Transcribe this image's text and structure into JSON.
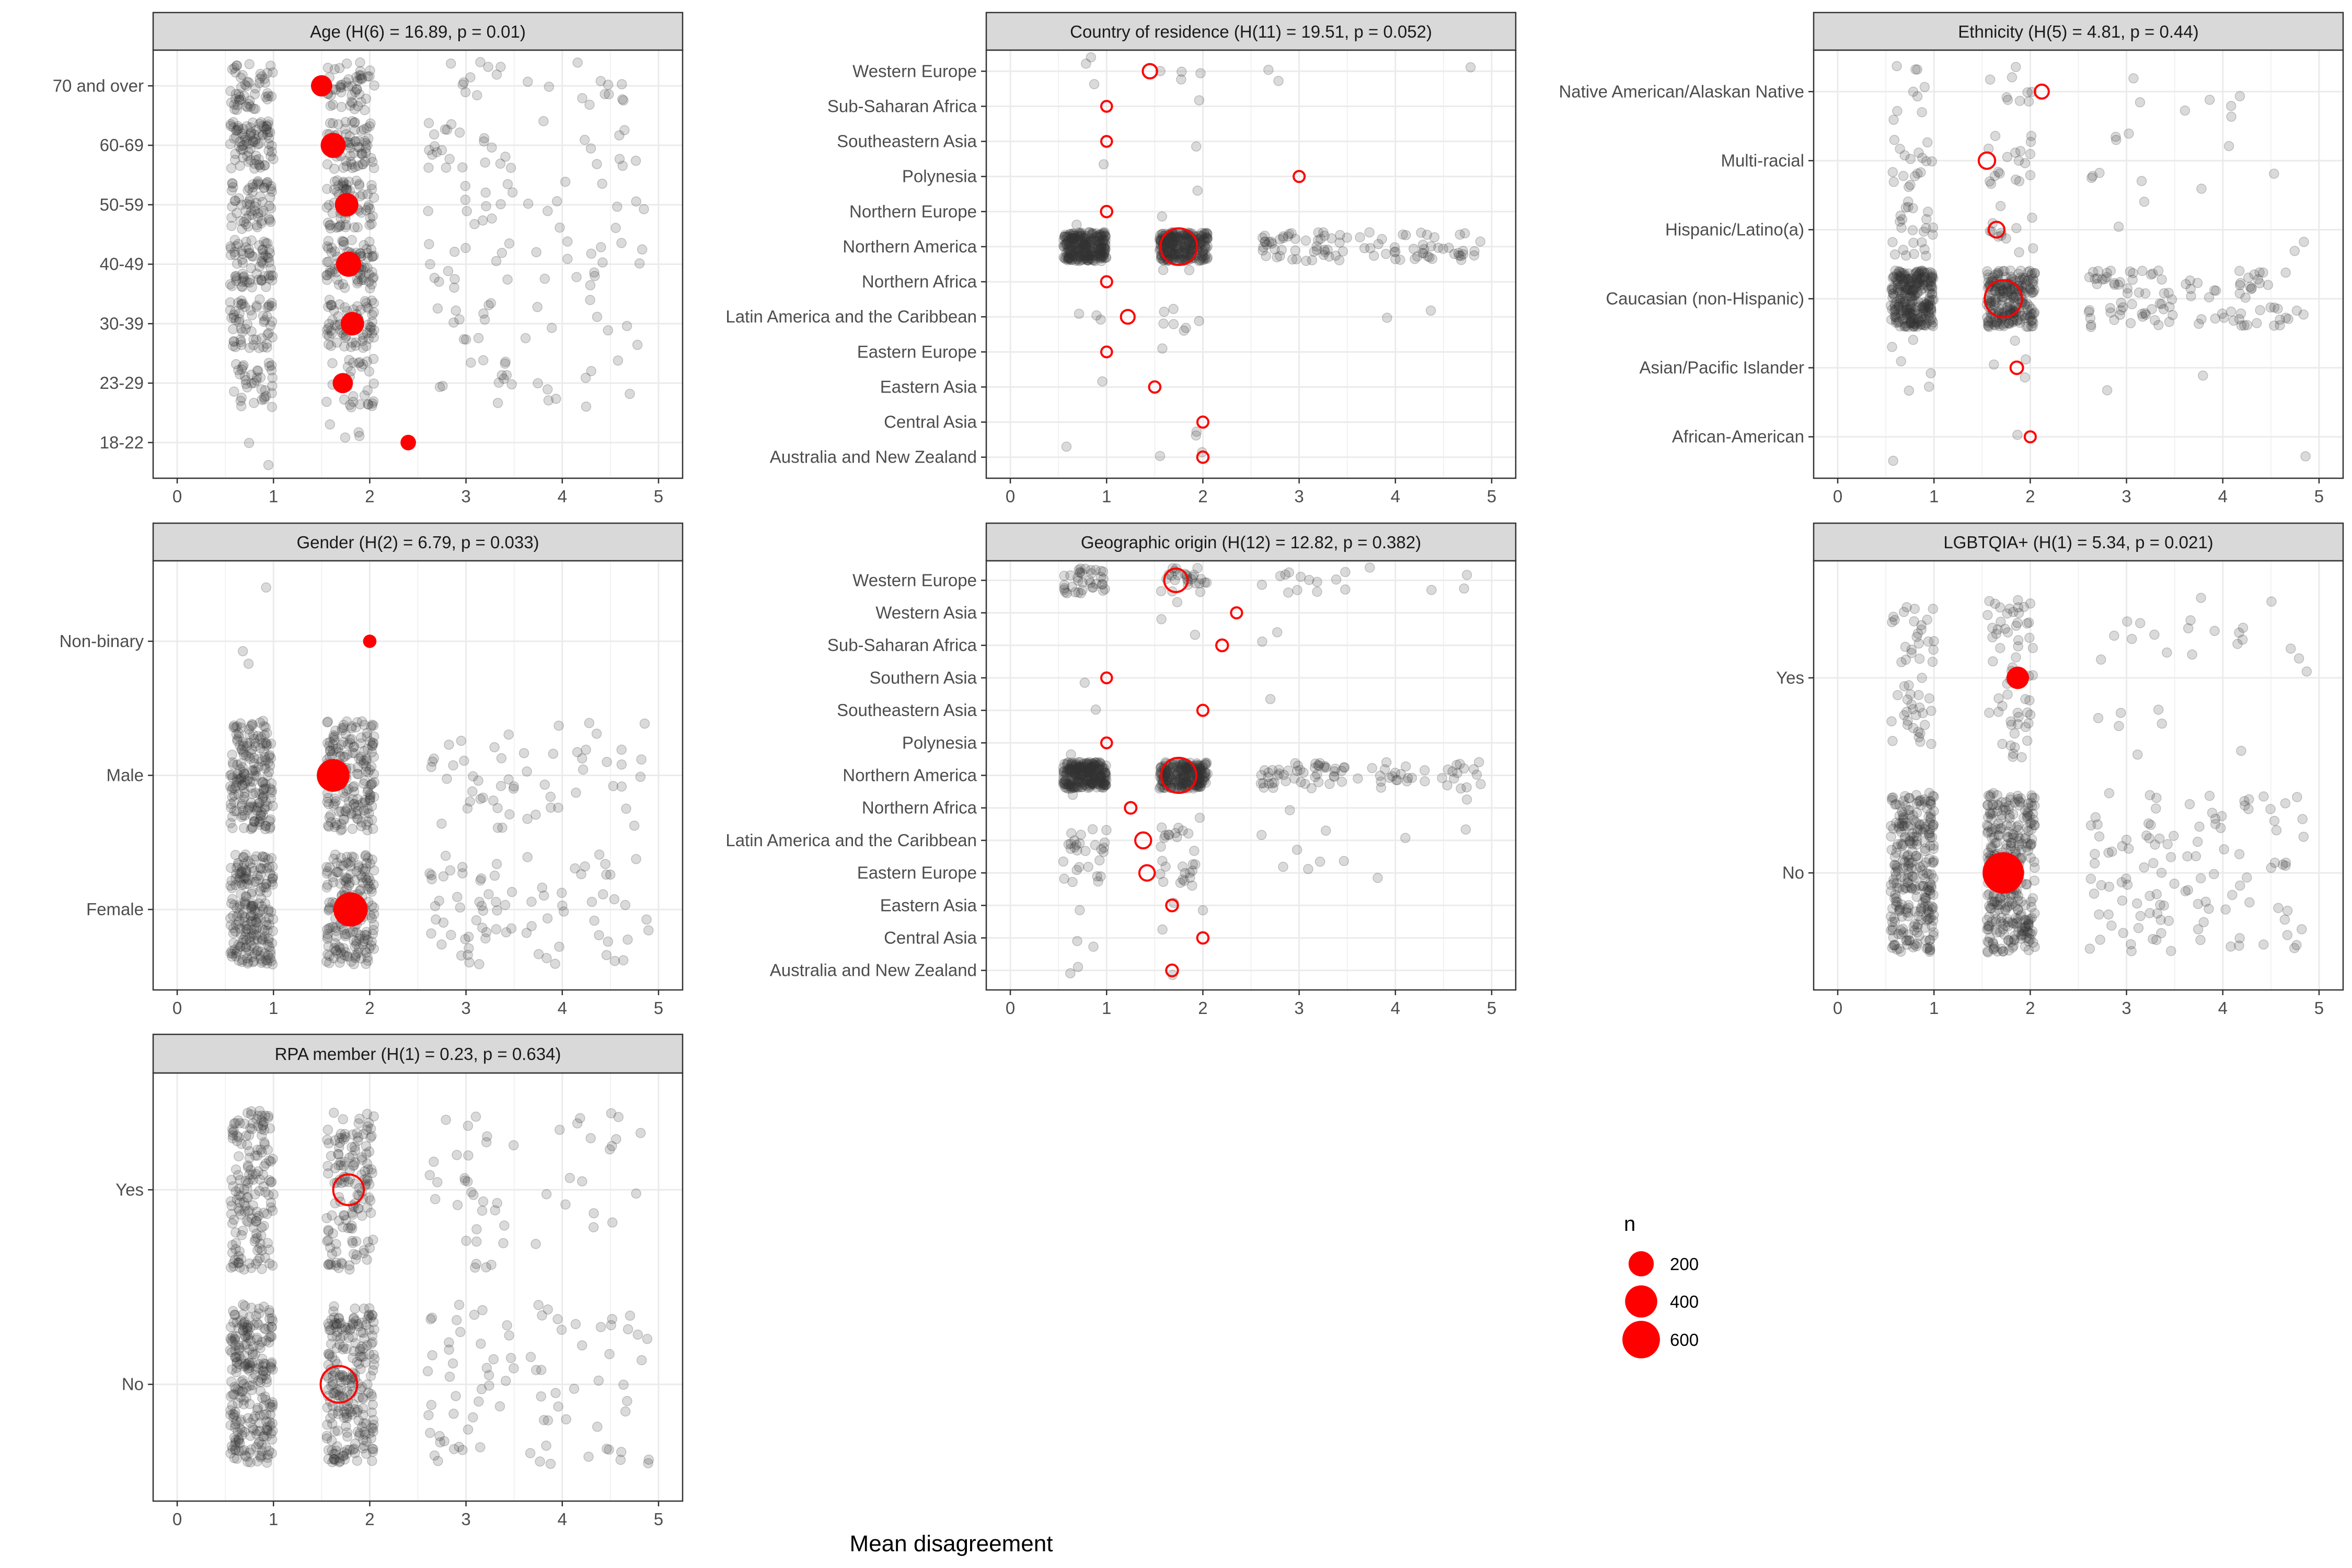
{
  "chart_data": {
    "type": "scatter",
    "xlabel": "Mean disagreement",
    "x_ticks": [
      0,
      1,
      2,
      3,
      4,
      5
    ],
    "xlim": [
      -0.25,
      5.25
    ],
    "grid": true,
    "legend": {
      "title": "n",
      "placement": "right",
      "entries": [
        {
          "label": "200",
          "n": 200
        },
        {
          "label": "400",
          "n": 400
        },
        {
          "label": "600",
          "n": 600
        }
      ]
    },
    "point_color": "#ff0000",
    "jitter_color": "#333333",
    "panels": [
      {
        "title": "Age (H(6) = 16.89, p = 0.01)",
        "significant": true,
        "categories": [
          "70 and over",
          "60-69",
          "50-59",
          "40-49",
          "30-39",
          "23-29",
          "18-22"
        ],
        "means": [
          1.5,
          1.62,
          1.76,
          1.78,
          1.82,
          1.72,
          2.4
        ],
        "n": [
          118,
          195,
          162,
          200,
          160,
          100,
          36
        ],
        "jitter_counts": [
          120,
          180,
          150,
          175,
          150,
          90,
          6
        ]
      },
      {
        "title": "Country of residence (H(11) = 19.51, p = 0.052)",
        "significant": false,
        "categories": [
          "Western Europe",
          "Sub-Saharan Africa",
          "Southeastern Asia",
          "Polynesia",
          "Northern Europe",
          "Northern America",
          "Northern Africa",
          "Latin America and the Caribbean",
          "Eastern Europe",
          "Eastern Asia",
          "Central Asia",
          "Australia and New Zealand"
        ],
        "means": [
          1.45,
          1.0,
          1.0,
          3.0,
          1.0,
          1.75,
          1.0,
          1.22,
          1.0,
          1.5,
          2.0,
          2.0
        ],
        "n": [
          25,
          4,
          4,
          5,
          6,
          560,
          5,
          20,
          4,
          6,
          5,
          6
        ],
        "jitter_counts": [
          10,
          1,
          1,
          2,
          2,
          600,
          2,
          12,
          1,
          1,
          2,
          3
        ]
      },
      {
        "title": "Ethnicity (H(5) = 4.81, p = 0.44)",
        "significant": false,
        "categories": [
          "Native American/Alaskan Native",
          "Multi-racial",
          "Hispanic/Latino(a)",
          "Caucasian (non-Hispanic)",
          "Asian/Pacific Islander",
          "African-American"
        ],
        "means": [
          2.12,
          1.55,
          1.65,
          1.72,
          1.86,
          2.0
        ],
        "n": [
          22,
          45,
          38,
          580,
          12,
          5
        ],
        "jitter_counts": [
          25,
          45,
          40,
          600,
          12,
          3
        ]
      },
      {
        "title": "Gender (H(2) = 6.79, p = 0.033)",
        "significant": true,
        "categories": [
          "Non-binary",
          "Male",
          "Female"
        ],
        "means": [
          2.0,
          1.62,
          1.8
        ],
        "n": [
          18,
          420,
          470
        ],
        "jitter_counts": [
          3,
          420,
          470
        ]
      },
      {
        "title": "Geographic origin (H(12) = 12.82, p = 0.382)",
        "significant": false,
        "categories": [
          "Western Europe",
          "Western Asia",
          "Sub-Saharan Africa",
          "Southern Asia",
          "Southeastern Asia",
          "Polynesia",
          "Northern America",
          "Northern Africa",
          "Latin America and the Caribbean",
          "Eastern Europe",
          "Eastern Asia",
          "Central Asia",
          "Australia and New Zealand"
        ],
        "means": [
          1.72,
          2.35,
          2.2,
          1.0,
          2.0,
          1.0,
          1.75,
          1.25,
          1.38,
          1.42,
          1.68,
          2.0,
          1.68
        ],
        "n": [
          160,
          5,
          8,
          4,
          5,
          4,
          500,
          7,
          40,
          35,
          8,
          6,
          8
        ],
        "jitter_counts": [
          80,
          2,
          3,
          1,
          2,
          1,
          550,
          4,
          35,
          30,
          3,
          3,
          3
        ]
      },
      {
        "title": "LGBTQIA+ (H(1) = 5.34, p = 0.021)",
        "significant": true,
        "categories": [
          "Yes",
          "No"
        ],
        "means": [
          1.87,
          1.72
        ],
        "n": [
          140,
          770
        ],
        "jitter_counts": [
          140,
          700
        ]
      },
      {
        "title": "RPA member (H(1) = 0.23, p = 0.634)",
        "significant": false,
        "categories": [
          "Yes",
          "No"
        ],
        "means": [
          1.78,
          1.68
        ],
        "n": [
          350,
          560
        ],
        "jitter_counts": [
          350,
          560
        ]
      }
    ]
  }
}
